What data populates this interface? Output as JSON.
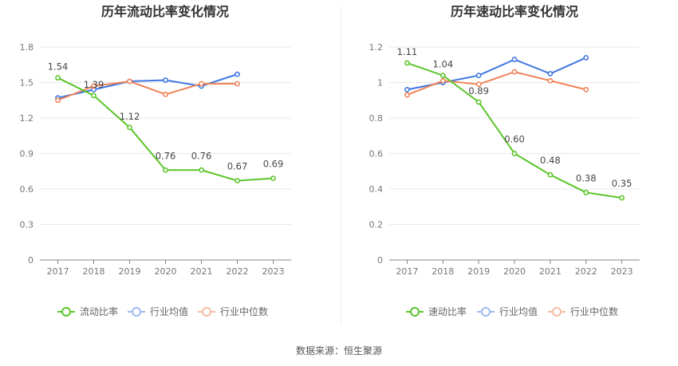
{
  "source_label": "数据来源：恒生聚源",
  "colors": {
    "green": "#5bc52a",
    "blue": "#3f77e0",
    "orange": "#f0845a",
    "legend_blue": "#9fbaf0",
    "legend_orange": "#f6bba2"
  },
  "chart_data": [
    {
      "type": "line",
      "title": "历年流动比率变化情况",
      "categories": [
        "2017",
        "2018",
        "2019",
        "2020",
        "2021",
        "2022",
        "2023"
      ],
      "ylim": [
        0,
        1.8
      ],
      "yticks": [
        "0",
        "0.3",
        "0.6",
        "0.9",
        "1.2",
        "1.5",
        "1.8"
      ],
      "grid": true,
      "legend_position": "bottom",
      "series": [
        {
          "name": "流动比率",
          "color": "green",
          "labeled": true,
          "values": [
            1.54,
            1.39,
            1.12,
            0.76,
            0.76,
            0.67,
            0.69
          ],
          "labels": [
            "1.54",
            "1.39",
            "1.12",
            "0.76",
            "0.76",
            "0.67",
            "0.69"
          ]
        },
        {
          "name": "行业均值",
          "color": "blue",
          "labeled": false,
          "values": [
            1.37,
            1.44,
            1.51,
            1.52,
            1.47,
            1.57,
            null
          ]
        },
        {
          "name": "行业中位数",
          "color": "orange",
          "labeled": false,
          "values": [
            1.35,
            1.47,
            1.51,
            1.4,
            1.49,
            1.49,
            null
          ]
        }
      ]
    },
    {
      "type": "line",
      "title": "历年速动比率变化情况",
      "categories": [
        "2017",
        "2018",
        "2019",
        "2020",
        "2021",
        "2022",
        "2023"
      ],
      "ylim": [
        0,
        1.2
      ],
      "yticks": [
        "0",
        "0.2",
        "0.4",
        "0.6",
        "0.8",
        "1",
        "1.2"
      ],
      "grid": true,
      "legend_position": "bottom",
      "series": [
        {
          "name": "速动比率",
          "color": "green",
          "labeled": true,
          "values": [
            1.11,
            1.04,
            0.89,
            0.6,
            0.48,
            0.38,
            0.35
          ],
          "labels": [
            "1.11",
            "1.04",
            "0.89",
            "0.60",
            "0.48",
            "0.38",
            "0.35"
          ]
        },
        {
          "name": "行业均值",
          "color": "blue",
          "labeled": false,
          "values": [
            0.96,
            1.0,
            1.04,
            1.13,
            1.05,
            1.14,
            null
          ]
        },
        {
          "name": "行业中位数",
          "color": "orange",
          "labeled": false,
          "values": [
            0.93,
            1.01,
            0.99,
            1.06,
            1.01,
            0.96,
            null
          ]
        }
      ]
    }
  ]
}
